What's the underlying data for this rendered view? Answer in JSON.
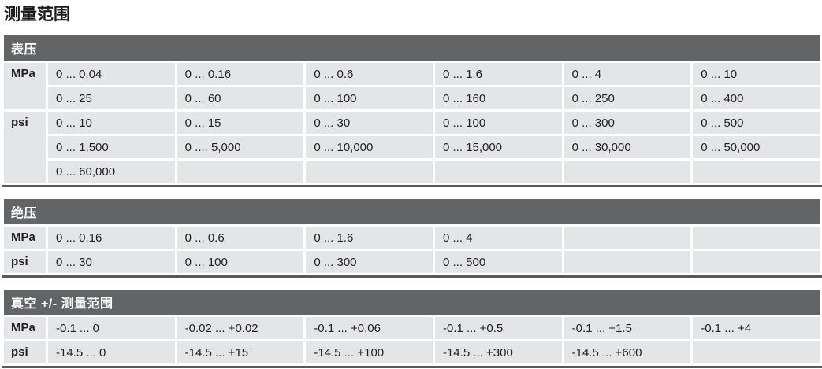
{
  "page": {
    "title": "测量范围"
  },
  "colors": {
    "section_header_bg": "#636466",
    "section_header_text": "#ffffff",
    "cell_bg": "#e4e5e6",
    "bottom_rule": "#58595b",
    "text": "#231f20"
  },
  "tables": [
    {
      "key": "gauge-pressure",
      "header": "表压",
      "rows": [
        {
          "label": "MPa",
          "label_rowspan": 2,
          "cells": [
            "0 ... 0.04",
            "0 ... 0.16",
            "0 ... 0.6",
            "0 ... 1.6",
            "0 ... 4",
            "0 ... 10"
          ]
        },
        {
          "cells": [
            "0 ... 25",
            "0 ... 60",
            "0 ... 100",
            "0 ... 160",
            "0 ... 250",
            "0 ... 400"
          ]
        },
        {
          "label": "psi",
          "label_rowspan": 3,
          "cells": [
            "0 ... 10",
            "0 ... 15",
            "0 ... 30",
            "0 ... 100",
            "0 ... 300",
            "0 ... 500"
          ]
        },
        {
          "cells": [
            "0 ... 1,500",
            "0 .... 5,000",
            "0 ... 10,000",
            "0 ... 15,000",
            "0 ... 30,000",
            "0 ... 50,000"
          ]
        },
        {
          "cells": [
            "0 ... 60,000",
            "",
            "",
            "",
            "",
            ""
          ]
        }
      ]
    },
    {
      "key": "absolute-pressure",
      "header": "绝压",
      "rows": [
        {
          "label": "MPa",
          "label_rowspan": 1,
          "cells": [
            "0 ... 0.16",
            "0 ... 0.6",
            "0 ... 1.6",
            "0 ... 4",
            "",
            ""
          ]
        },
        {
          "label": "psi",
          "label_rowspan": 1,
          "cells": [
            "0 ... 30",
            "0 ... 100",
            "0 ... 300",
            "0 ... 500",
            "",
            ""
          ]
        }
      ]
    },
    {
      "key": "vacuum-range",
      "header": "真空 +/- 测量范围",
      "rows": [
        {
          "label": "MPa",
          "label_rowspan": 1,
          "cells": [
            "-0.1 ... 0",
            "-0.02 ... +0.02",
            "-0.1 ... +0.06",
            "-0.1 ... +0.5",
            "-0.1 ... +1.5",
            "-0.1 ... +4"
          ]
        },
        {
          "label": "psi",
          "label_rowspan": 1,
          "cells": [
            "-14.5 ... 0",
            "-14.5 ... +15",
            "-14.5 ... +100",
            "-14.5 ... +300",
            "-14.5 ... +600",
            ""
          ]
        }
      ]
    }
  ]
}
